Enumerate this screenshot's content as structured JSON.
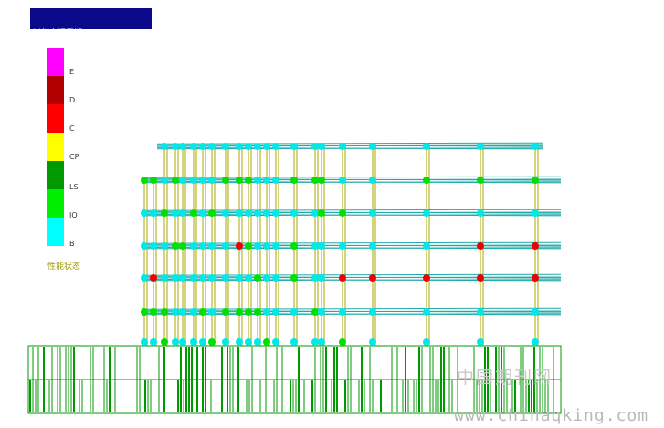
{
  "info": {
    "line1": "当前自振周期:  1 - 9",
    "line2": "当前增量步号:   63"
  },
  "legend": {
    "title": "性能状态",
    "items": [
      {
        "label": "E",
        "color": "#ff00ff"
      },
      {
        "label": "D",
        "color": "#b00000"
      },
      {
        "label": "C",
        "color": "#ff0000"
      },
      {
        "label": "CP",
        "color": "#ffff00"
      },
      {
        "label": "LS",
        "color": "#009900"
      },
      {
        "label": "IO",
        "color": "#00ee00"
      },
      {
        "label": "B",
        "color": "#00ffff"
      }
    ]
  },
  "colors": {
    "beam": "#22aaaa",
    "column": "#aaaa00",
    "hinge_B": "#00e8e8",
    "hinge_IO": "#00e000",
    "hinge_C": "#ee0000",
    "foundation": "#009900"
  },
  "watermark": {
    "cn": "中国期刊网",
    "url": "www.chinaqking.com"
  }
}
